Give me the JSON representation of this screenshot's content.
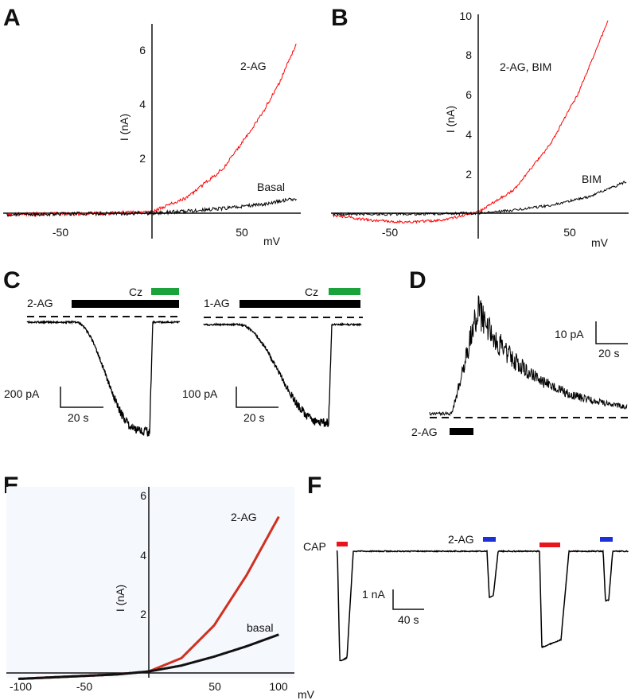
{
  "chart_data": [
    {
      "panel": "A",
      "type": "line",
      "ylabel": "I (nA)",
      "xlabel": "mV",
      "xlim": [
        -82,
        82
      ],
      "ylim": [
        0,
        7
      ],
      "xticks": [
        -50,
        50
      ],
      "xtick_labels": [
        "-50",
        "50"
      ],
      "yticks": [
        2,
        4,
        6
      ],
      "ytick_labels": [
        "2",
        "4",
        "6"
      ],
      "series": [
        {
          "name": "2-AG",
          "color": "#ff0000",
          "x": [
            -80,
            -60,
            -40,
            -20,
            0,
            20,
            40,
            60,
            70,
            80
          ],
          "y": [
            -0.05,
            -0.03,
            -0.02,
            0.0,
            0.05,
            0.6,
            1.7,
            3.6,
            4.8,
            6.3
          ]
        },
        {
          "name": "Basal",
          "color": "#000000",
          "x": [
            -80,
            -40,
            0,
            20,
            40,
            60,
            80
          ],
          "y": [
            -0.05,
            -0.02,
            0.0,
            0.08,
            0.18,
            0.32,
            0.55
          ]
        }
      ]
    },
    {
      "panel": "B",
      "type": "line",
      "ylabel": "I (nA)",
      "xlabel": "mV",
      "xlim": [
        -82,
        82
      ],
      "ylim": [
        -0.5,
        10
      ],
      "xticks": [
        -50,
        50
      ],
      "xtick_labels": [
        "-50",
        "50"
      ],
      "yticks": [
        2,
        4,
        6,
        8,
        10
      ],
      "ytick_labels": [
        "2",
        "4",
        "6",
        "8",
        "10"
      ],
      "series": [
        {
          "name": "2-AG, BIM",
          "color": "#ff0000",
          "x": [
            -80,
            -60,
            -40,
            -20,
            0,
            20,
            40,
            55,
            65,
            72
          ],
          "y": [
            -0.1,
            -0.35,
            -0.45,
            -0.35,
            0.05,
            1.2,
            3.5,
            6.0,
            8.2,
            9.8
          ]
        },
        {
          "name": "BIM",
          "color": "#000000",
          "x": [
            -80,
            -40,
            0,
            20,
            40,
            60,
            82
          ],
          "y": [
            -0.05,
            -0.05,
            0.0,
            0.15,
            0.4,
            0.8,
            1.6
          ]
        }
      ]
    },
    {
      "panel": "C",
      "type": "line",
      "traces": [
        {
          "drug": "2-AG",
          "cz": "Cz",
          "drug_bar_color": "#000000",
          "cz_bar_color": "#1aa33a"
        },
        {
          "drug": "1-AG",
          "cz": "Cz",
          "drug_bar_color": "#000000",
          "cz_bar_color": "#1aa33a"
        }
      ],
      "scale_bars": [
        {
          "y": "200 pA",
          "x": "20 s"
        },
        {
          "y": "100 pA",
          "x": "20 s"
        }
      ]
    },
    {
      "panel": "D",
      "type": "line",
      "drug": "2-AG",
      "scale_bar": {
        "y": "10 pA",
        "x": "20 s"
      }
    },
    {
      "panel": "E",
      "type": "line",
      "ylabel": "I (nA)",
      "xlabel": "mV",
      "xlim": [
        -105,
        105
      ],
      "ylim": [
        -0.3,
        6
      ],
      "xticks": [
        -100,
        -50,
        50,
        100
      ],
      "xtick_labels": [
        "-100",
        "-50",
        "50",
        "100"
      ],
      "yticks": [
        2,
        4,
        6
      ],
      "ytick_labels": [
        "2",
        "4",
        "6"
      ],
      "series": [
        {
          "name": "2-AG",
          "color": "#d03020",
          "x": [
            -100,
            -75,
            -50,
            -25,
            0,
            25,
            50,
            75,
            100
          ],
          "y": [
            -0.2,
            -0.15,
            -0.1,
            -0.05,
            0.05,
            0.5,
            1.6,
            3.3,
            5.3
          ]
        },
        {
          "name": "basal",
          "color": "#111111",
          "x": [
            -100,
            -75,
            -50,
            -25,
            0,
            25,
            50,
            75,
            100
          ],
          "y": [
            -0.2,
            -0.15,
            -0.1,
            -0.05,
            0.05,
            0.25,
            0.55,
            0.9,
            1.3
          ]
        }
      ]
    },
    {
      "panel": "F",
      "type": "line",
      "labels": [
        "CAP",
        "2-AG"
      ],
      "applications": [
        {
          "agent": "CAP",
          "color": "#e8161c"
        },
        {
          "agent": "2-AG",
          "color": "#1d2fd6"
        },
        {
          "agent": "CAP",
          "color": "#e8161c"
        },
        {
          "agent": "2-AG",
          "color": "#1d2fd6"
        }
      ],
      "scale_bar": {
        "y": "1 nA",
        "x": "40 s"
      }
    }
  ],
  "panel_letters": [
    "A",
    "B",
    "C",
    "D",
    "E",
    "F"
  ]
}
